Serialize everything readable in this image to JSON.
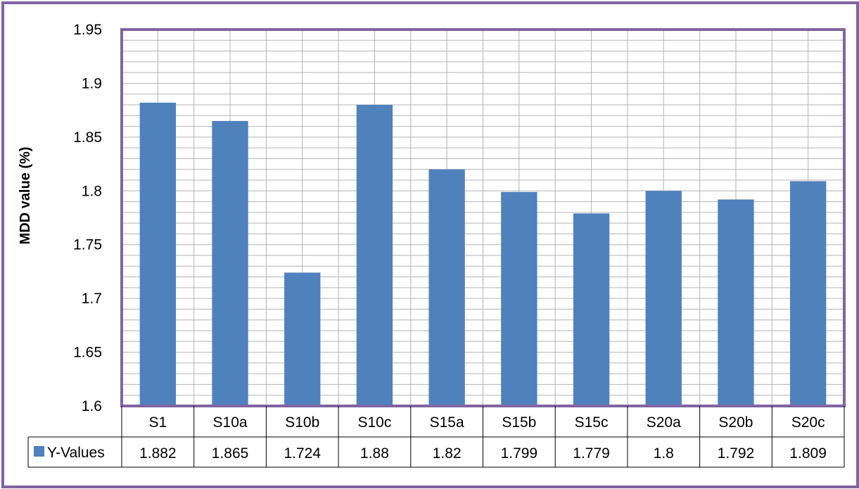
{
  "chart_data": {
    "type": "bar",
    "categories": [
      "S1",
      "S10a",
      "S10b",
      "S10c",
      "S15a",
      "S15b",
      "S15c",
      "S20a",
      "S20b",
      "S20c"
    ],
    "series": [
      {
        "name": "Y-Values",
        "values": [
          1.882,
          1.865,
          1.724,
          1.88,
          1.82,
          1.799,
          1.779,
          1.8,
          1.792,
          1.809
        ]
      }
    ],
    "table_values": [
      "1.882",
      "1.865",
      "1.724",
      "1.88",
      "1.82",
      "1.799",
      "1.779",
      "1.8",
      "1.792",
      "1.809"
    ],
    "ylabel": "MDD value (%)",
    "xlabel": "",
    "ylim": [
      1.6,
      1.95
    ],
    "ytick_labels": [
      "1.95",
      "1.9",
      "1.85",
      "1.8",
      "1.75",
      "1.7",
      "1.65",
      "1.6"
    ],
    "ytick_values": [
      1.95,
      1.9,
      1.85,
      1.8,
      1.75,
      1.7,
      1.65,
      1.6
    ],
    "minor_step": 0.01,
    "grid": true,
    "legend_position": "data-table",
    "colors": {
      "bar": "#4f81bd",
      "plot_border": "#8064a2",
      "frame_border": "#8064a2",
      "grid": "#b3b3b3"
    }
  }
}
